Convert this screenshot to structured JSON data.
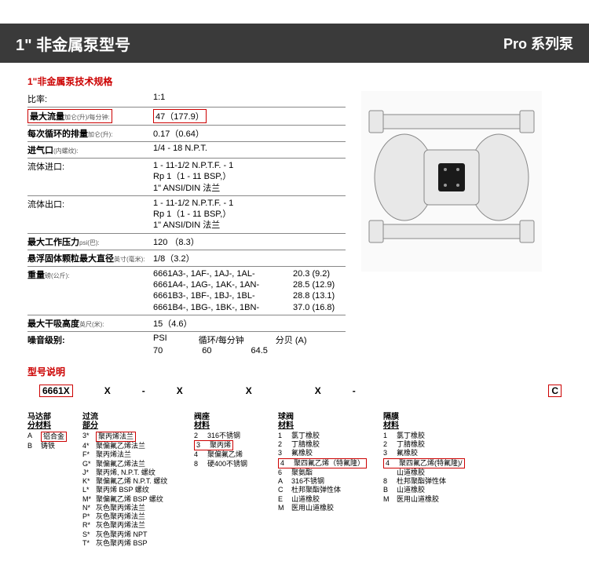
{
  "header": {
    "title": "1\" 非金属泵型号",
    "series": "Pro 系列泵"
  },
  "specTitle": "1\"非金属泵技术规格",
  "specs": {
    "ratio_l": "比率:",
    "ratio_v": "1:1",
    "maxflow_l": "最大流量",
    "maxflow_sub": "加仑(升)/每分钟:",
    "maxflow_v": "47（177.9）",
    "disp_l": "每次循环的排量",
    "disp_sub": "加仑(升):",
    "disp_v": "0.17（0.64）",
    "airinlet_l": "进气口",
    "airinlet_sub": "(内螺纹):",
    "airinlet_v": "1/4 - 18 N.P.T.",
    "fluidin_l": "流体进口:",
    "fluidin_v1": "1 - 11-1/2 N.P.T.F. - 1",
    "fluidin_v2": "Rp 1（1 - 11 BSP,）",
    "fluidin_v3": "1\" ANSI/DIN 法兰",
    "fluidout_l": "流体出口:",
    "fluidout_v1": "1 - 11-1/2 N.P.T.F. - 1",
    "fluidout_v2": "Rp 1（1 - 11 BSP,）",
    "fluidout_v3": "1\" ANSI/DIN 法兰",
    "maxpress_l": "最大工作压力",
    "maxpress_sub": "psi(巴):",
    "maxpress_v": "120 （8.3）",
    "solid_l": "悬浮固体颗粒最大直径",
    "solid_sub": "英寸(毫米):",
    "solid_v": "1/8（3.2）",
    "weight_l": "重量",
    "weight_sub": "磅(公斤):",
    "w1_a": "6661A3-, 1AF-, 1AJ-, 1AL-",
    "w1_b": "20.3 (9.2)",
    "w2_a": "6661A4-, 1AG-, 1AK-, 1AN-",
    "w2_b": "28.5 (12.9)",
    "w3_a": "6661B3-, 1BF-, 1BJ-, 1BL-",
    "w3_b": "28.8 (13.1)",
    "w4_a": "6661B4-, 1BG-, 1BK-, 1BN-",
    "w4_b": "37.0 (16.8)",
    "suction_l": "最大干吸高度",
    "suction_sub": "英尺(米):",
    "suction_v": "15（4.6）",
    "noise_l": "噪音级别:",
    "noise_h1": "PSI",
    "noise_h2": "循环/每分钟",
    "noise_h3": "分贝 (A)",
    "noise_v1": "70",
    "noise_v2": "60",
    "noise_v3": "64.5"
  },
  "modelTitle": "型号说明",
  "modelCodes": {
    "c1": "6661X",
    "c2": "X",
    "sep": "-",
    "cC": "C"
  },
  "cats": {
    "c1_t1": "马达部",
    "c1_t2": "分材料",
    "c1": [
      [
        "A",
        "铝合金"
      ],
      [
        "B",
        "铸铁"
      ]
    ],
    "c2_t1": "过流",
    "c2_t2": "部分",
    "c2": [
      [
        "3*",
        "聚丙烯法兰"
      ],
      [
        "4*",
        "聚偏氟乙烯法兰"
      ],
      [
        "F*",
        "聚丙烯法兰"
      ],
      [
        "G*",
        "聚偏氟乙烯法兰"
      ],
      [
        "J*",
        "聚丙烯, N.P.T. 螺纹"
      ],
      [
        "K*",
        "聚偏氟乙烯 N.P.T. 螺纹"
      ],
      [
        "L*",
        "聚丙烯 BSP 螺纹"
      ],
      [
        "M*",
        "聚偏氟乙烯 BSP 螺纹"
      ],
      [
        "N*",
        "灰色聚丙烯法兰"
      ],
      [
        "P*",
        "灰色聚丙烯法兰"
      ],
      [
        "R*",
        "灰色聚丙烯法兰"
      ],
      [
        "S*",
        "灰色聚丙烯 NPT"
      ],
      [
        "T*",
        "灰色聚丙烯 BSP"
      ]
    ],
    "c3_t": "阀座",
    "c3_t2": "材料",
    "c3": [
      [
        "2",
        "316不锈钢"
      ],
      [
        "3",
        "聚丙烯"
      ],
      [
        "4",
        "聚偏氟乙烯"
      ],
      [
        "8",
        "硬400不锈钢"
      ]
    ],
    "c4_t": "球阀",
    "c4_t2": "材料",
    "c4": [
      [
        "1",
        "氯丁橡胶"
      ],
      [
        "2",
        "丁腈橡胶"
      ],
      [
        "3",
        "氟橡胶"
      ],
      [
        "4",
        "聚四氟乙烯（特氟隆）"
      ],
      [
        "6",
        "聚氨酯"
      ],
      [
        "A",
        "316不锈钢"
      ],
      [
        "C",
        "杜邦聚酯弹性体"
      ],
      [
        "E",
        "山道橡胶"
      ],
      [
        "M",
        "医用山道橡胶"
      ]
    ],
    "c5_t": "隔膜",
    "c5_t2": "材料",
    "c5": [
      [
        "1",
        "氯丁橡胶"
      ],
      [
        "2",
        "丁腈橡胶"
      ],
      [
        "3",
        "氟橡胶"
      ],
      [
        "4",
        "聚四氟乙烯(特氟隆)/"
      ],
      [
        "",
        "山道橡胶"
      ],
      [
        "8",
        "杜邦聚酯弹性体"
      ],
      [
        "B",
        "山道橡胶"
      ],
      [
        "M",
        "医用山道橡胶"
      ]
    ]
  },
  "hl_color": "#cc0000"
}
